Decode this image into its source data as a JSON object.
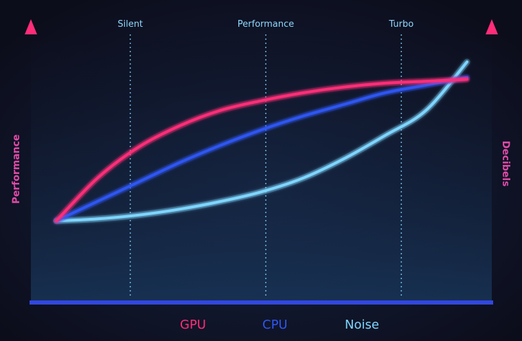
{
  "chart_data": {
    "type": "line",
    "title": "",
    "x": [
      0,
      10,
      20,
      30,
      40,
      50,
      60,
      70,
      80,
      90,
      100
    ],
    "xlim": [
      0,
      100
    ],
    "ylim": [
      0,
      100
    ],
    "y_axis_left_label": "Performance",
    "y_axis_right_label": "Decibels",
    "modes": [
      {
        "label": "Silent",
        "x": 18
      },
      {
        "label": "Performance",
        "x": 51
      },
      {
        "label": "Turbo",
        "x": 84
      }
    ],
    "series": [
      {
        "name": "GPU",
        "color": "#ff2d78",
        "values": [
          18,
          40,
          56,
          67,
          75,
          80,
          84,
          87,
          89,
          90,
          91
        ]
      },
      {
        "name": "CPU",
        "color": "#2f56f2",
        "values": [
          18,
          28,
          38,
          48,
          57,
          65,
          72,
          78,
          84,
          88,
          92
        ]
      },
      {
        "name": "Noise",
        "color": "#7fd6ff",
        "values": [
          18,
          19,
          21,
          24,
          28,
          33,
          40,
          50,
          62,
          75,
          100
        ]
      }
    ],
    "legend_position": "bottom-center",
    "grid": false
  },
  "colors": {
    "left_axis": "#e83e8c",
    "right_axis": "#e83e8c",
    "baseline": "#3247e0",
    "mode_line": "#7fd6ff"
  }
}
